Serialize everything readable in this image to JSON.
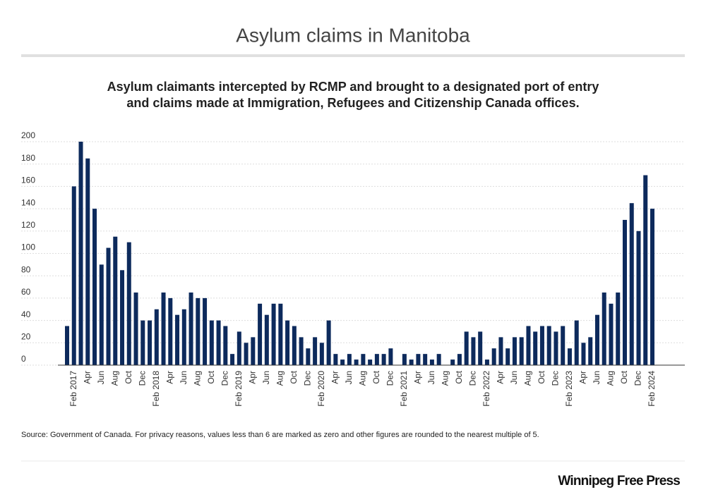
{
  "chart_data": {
    "type": "bar",
    "title": "Asylum claims in Manitoba",
    "subtitle": [
      "Asylum claimants intercepted by RCMP and brought to a designated port of entry",
      "and claims made at Immigration, Refugees and Citizenship Canada offices."
    ],
    "source": "Source: Government of Canada. For privacy reasons, values less than 6 are marked as zero and other figures are rounded to the nearest multiple of 5.",
    "brand": "Winnipeg Free Press",
    "categories": [
      null,
      "Feb 2017",
      null,
      "Apr",
      null,
      "Jun",
      null,
      "Aug",
      null,
      "Oct",
      null,
      "Dec",
      null,
      "Feb 2018",
      null,
      "Apr",
      null,
      "Jun",
      null,
      "Aug",
      null,
      "Oct",
      null,
      "Dec",
      null,
      "Feb 2019",
      null,
      "Apr",
      null,
      "Jun",
      null,
      "Aug",
      null,
      "Oct",
      null,
      "Dec",
      null,
      "Feb 2020",
      null,
      "Apr",
      null,
      "Jun",
      null,
      "Aug",
      null,
      "Oct",
      null,
      "Dec",
      null,
      "Feb 2021",
      null,
      "Apr",
      null,
      "Jun",
      null,
      "Aug",
      null,
      "Oct",
      null,
      "Dec",
      null,
      "Feb 2022",
      null,
      "Apr",
      null,
      "Jun",
      null,
      "Aug",
      null,
      "Oct",
      null,
      "Dec",
      null,
      "Feb 2023",
      null,
      "Apr",
      null,
      "Jun",
      null,
      "Aug",
      null,
      "Oct",
      null,
      "Dec",
      null,
      "Feb 2024"
    ],
    "values": [
      35,
      160,
      200,
      185,
      140,
      90,
      105,
      115,
      85,
      110,
      65,
      40,
      40,
      50,
      65,
      60,
      45,
      50,
      65,
      60,
      60,
      40,
      40,
      35,
      10,
      30,
      20,
      25,
      55,
      45,
      55,
      55,
      40,
      35,
      25,
      15,
      25,
      20,
      40,
      10,
      5,
      10,
      5,
      10,
      5,
      10,
      10,
      15,
      0,
      10,
      5,
      10,
      10,
      5,
      10,
      0,
      5,
      10,
      30,
      25,
      30,
      5,
      15,
      25,
      15,
      25,
      25,
      35,
      30,
      35,
      35,
      30,
      35,
      15,
      40,
      20,
      25,
      45,
      65,
      55,
      65,
      130,
      145,
      120,
      170,
      140
    ],
    "color": "#0d2a5c",
    "ylim": [
      0,
      200
    ],
    "yticks": [
      0,
      20,
      40,
      60,
      80,
      100,
      120,
      140,
      160,
      180,
      200
    ],
    "grid": true
  }
}
